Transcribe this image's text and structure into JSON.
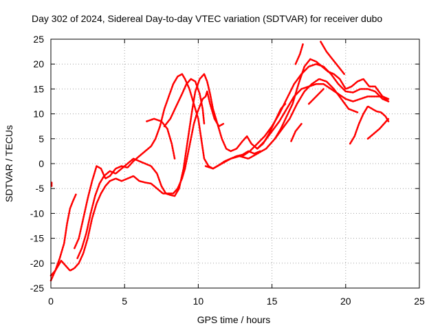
{
  "chart_data": {
    "type": "scatter",
    "title": "Day 302 of 2024, Sidereal Day-to-day VTEC variation (SDTVAR) for receiver dubo",
    "xlabel": "GPS time / hours",
    "ylabel": "SDTVAR / TECUs",
    "xlim": [
      0,
      25
    ],
    "ylim": [
      -25,
      25
    ],
    "xticks": [
      0,
      5,
      10,
      15,
      20,
      25
    ],
    "yticks": [
      -25,
      -20,
      -15,
      -10,
      -5,
      0,
      5,
      10,
      15,
      20,
      25
    ],
    "grid": true,
    "legend": "none",
    "marker_color": "#ff0000",
    "series": [
      {
        "points": [
          [
            0.0,
            -22.5
          ],
          [
            0.3,
            -21.5
          ],
          [
            0.7,
            -19.5
          ],
          [
            1.0,
            -20.5
          ],
          [
            1.3,
            -21.5
          ],
          [
            1.6,
            -21
          ],
          [
            1.9,
            -20
          ],
          [
            2.2,
            -18
          ],
          [
            2.5,
            -15
          ],
          [
            2.8,
            -11
          ],
          [
            3.1,
            -8
          ],
          [
            3.4,
            -6
          ],
          [
            3.7,
            -4.5
          ],
          [
            4.0,
            -3.5
          ],
          [
            4.4,
            -3
          ],
          [
            4.8,
            -3.5
          ],
          [
            5.2,
            -3
          ],
          [
            5.6,
            -2.5
          ],
          [
            6.0,
            -3.5
          ],
          [
            6.4,
            -3.8
          ],
          [
            6.8,
            -4
          ],
          [
            7.2,
            -5
          ],
          [
            7.6,
            -6
          ],
          [
            8.0,
            -6
          ],
          [
            8.3,
            -6
          ],
          [
            8.6,
            -5
          ],
          [
            8.9,
            -3
          ],
          [
            9.1,
            -1
          ],
          [
            9.3,
            2
          ],
          [
            9.5,
            5
          ],
          [
            9.7,
            8
          ],
          [
            9.9,
            10
          ],
          [
            10.1,
            11.5
          ],
          [
            10.3,
            13
          ],
          [
            10.5,
            13.5
          ],
          [
            10.6,
            14.5
          ],
          [
            10.8,
            12
          ],
          [
            11.1,
            9
          ],
          [
            11.4,
            7.5
          ],
          [
            11.7,
            8
          ]
        ]
      },
      {
        "points": [
          [
            0.0,
            -23.5
          ],
          [
            0.3,
            -21.5
          ],
          [
            0.6,
            -19
          ],
          [
            0.9,
            -16
          ],
          [
            1.1,
            -12
          ],
          [
            1.3,
            -9
          ],
          [
            1.5,
            -7.5
          ],
          [
            1.7,
            -6.2
          ]
        ]
      },
      {
        "points": [
          [
            0.05,
            -3.8
          ],
          [
            0.05,
            -4.5
          ]
        ]
      },
      {
        "points": [
          [
            1.6,
            -17
          ],
          [
            1.9,
            -15
          ],
          [
            2.2,
            -11
          ],
          [
            2.5,
            -7
          ],
          [
            2.8,
            -3.5
          ],
          [
            3.1,
            -0.5
          ],
          [
            3.4,
            -1
          ],
          [
            3.7,
            -3
          ],
          [
            4.0,
            -2.5
          ],
          [
            4.4,
            -1
          ],
          [
            4.8,
            -0.5
          ],
          [
            5.2,
            -0.8
          ],
          [
            5.6,
            0.5
          ],
          [
            6.0,
            1.5
          ],
          [
            6.4,
            2.5
          ],
          [
            6.8,
            3.5
          ],
          [
            7.1,
            5
          ],
          [
            7.4,
            7.5
          ],
          [
            7.7,
            11
          ],
          [
            8.0,
            13.5
          ],
          [
            8.3,
            16
          ],
          [
            8.6,
            17.5
          ],
          [
            8.9,
            18
          ],
          [
            9.1,
            17
          ],
          [
            9.4,
            15
          ],
          [
            9.6,
            13
          ],
          [
            9.8,
            11
          ],
          [
            10.0,
            9
          ],
          [
            10.2,
            5
          ],
          [
            10.4,
            1
          ],
          [
            10.7,
            -0.5
          ],
          [
            11.0,
            -1
          ],
          [
            11.4,
            -0.3
          ],
          [
            11.8,
            0.5
          ],
          [
            12.2,
            1
          ],
          [
            12.6,
            1.5
          ],
          [
            13.0,
            1.8
          ],
          [
            13.4,
            2.5
          ],
          [
            13.8,
            2
          ],
          [
            14.2,
            2.5
          ]
        ]
      },
      {
        "points": [
          [
            1.8,
            -19
          ],
          [
            2.1,
            -17
          ],
          [
            2.4,
            -14
          ],
          [
            2.7,
            -10
          ],
          [
            3.0,
            -6.5
          ],
          [
            3.3,
            -4
          ],
          [
            3.6,
            -2.5
          ],
          [
            4.0,
            -1.5
          ],
          [
            4.4,
            -2
          ],
          [
            4.8,
            -1
          ],
          [
            5.2,
            0
          ],
          [
            5.6,
            1
          ],
          [
            6.0,
            0.5
          ],
          [
            6.4,
            0
          ],
          [
            6.8,
            -0.5
          ],
          [
            7.2,
            -2
          ],
          [
            7.5,
            -4.5
          ],
          [
            7.8,
            -6
          ],
          [
            8.1,
            -6.3
          ],
          [
            8.4,
            -6.5
          ],
          [
            8.7,
            -5
          ],
          [
            9.0,
            -1
          ],
          [
            9.3,
            5
          ],
          [
            9.6,
            11
          ],
          [
            9.8,
            14.5
          ],
          [
            10.1,
            17
          ],
          [
            10.4,
            18
          ],
          [
            10.6,
            16.5
          ],
          [
            10.8,
            14
          ],
          [
            11.0,
            11
          ],
          [
            11.3,
            8
          ],
          [
            11.6,
            5
          ],
          [
            11.9,
            3
          ],
          [
            12.2,
            2.5
          ],
          [
            12.6,
            3
          ],
          [
            13.0,
            4.5
          ],
          [
            13.3,
            5.5
          ],
          [
            13.6,
            4
          ],
          [
            14.0,
            3
          ],
          [
            14.4,
            4
          ],
          [
            14.8,
            6
          ],
          [
            15.2,
            8.5
          ],
          [
            15.6,
            11
          ],
          [
            15.9,
            12
          ]
        ]
      },
      {
        "points": [
          [
            6.5,
            8.5
          ],
          [
            7.0,
            9
          ],
          [
            7.5,
            8.5
          ],
          [
            7.9,
            7
          ],
          [
            8.2,
            4
          ],
          [
            8.4,
            1
          ]
        ]
      },
      {
        "points": [
          [
            7.7,
            7.5
          ],
          [
            8.1,
            9
          ],
          [
            8.5,
            11.5
          ],
          [
            8.9,
            14
          ],
          [
            9.2,
            16
          ],
          [
            9.5,
            17
          ],
          [
            9.8,
            16.5
          ],
          [
            10.1,
            14
          ],
          [
            10.3,
            11
          ],
          [
            10.4,
            8
          ]
        ]
      },
      {
        "points": [
          [
            10.5,
            -0.5
          ],
          [
            11.0,
            -1
          ],
          [
            11.6,
            0
          ],
          [
            12.2,
            1
          ],
          [
            12.8,
            1.5
          ],
          [
            13.4,
            1
          ],
          [
            14.0,
            2
          ],
          [
            14.6,
            3
          ],
          [
            15.2,
            5
          ],
          [
            15.7,
            7
          ],
          [
            16.2,
            9
          ],
          [
            16.7,
            12
          ],
          [
            17.2,
            14.5
          ],
          [
            17.7,
            16
          ],
          [
            18.2,
            17
          ],
          [
            18.7,
            16.5
          ],
          [
            19.2,
            15
          ],
          [
            19.7,
            13
          ],
          [
            20.2,
            11
          ],
          [
            20.8,
            10.3
          ]
        ]
      },
      {
        "points": [
          [
            13.0,
            1.5
          ],
          [
            13.5,
            2.5
          ],
          [
            14.0,
            4
          ],
          [
            14.5,
            5.5
          ],
          [
            15.0,
            7.5
          ],
          [
            15.5,
            10
          ],
          [
            16.0,
            13
          ],
          [
            16.5,
            16
          ],
          [
            17.0,
            18
          ],
          [
            17.5,
            19.5
          ],
          [
            18.0,
            20
          ],
          [
            18.5,
            19.5
          ],
          [
            19.0,
            18
          ],
          [
            19.5,
            16
          ],
          [
            20.0,
            14.5
          ],
          [
            20.5,
            14.3
          ],
          [
            21.0,
            15
          ],
          [
            21.5,
            15
          ],
          [
            22.0,
            14.5
          ],
          [
            22.5,
            13
          ],
          [
            22.9,
            12.5
          ]
        ]
      },
      {
        "points": [
          [
            14.0,
            3
          ],
          [
            14.5,
            4.5
          ],
          [
            15.0,
            6.5
          ],
          [
            15.5,
            8.5
          ],
          [
            16.0,
            11
          ],
          [
            16.5,
            13.5
          ],
          [
            17.0,
            15
          ],
          [
            17.5,
            15.5
          ],
          [
            18.0,
            16
          ],
          [
            18.5,
            16
          ],
          [
            19.0,
            15
          ],
          [
            19.5,
            14
          ],
          [
            20.0,
            13
          ],
          [
            20.5,
            12.5
          ],
          [
            21.0,
            13
          ],
          [
            21.5,
            13.5
          ],
          [
            22.0,
            13.5
          ],
          [
            22.5,
            13.5
          ],
          [
            22.9,
            13
          ]
        ]
      },
      {
        "points": [
          [
            15.2,
            5
          ],
          [
            15.6,
            7
          ],
          [
            16.0,
            9.5
          ],
          [
            16.4,
            12
          ],
          [
            16.8,
            16
          ],
          [
            17.2,
            19.5
          ],
          [
            17.6,
            21
          ],
          [
            18.0,
            20.5
          ],
          [
            18.4,
            19.5
          ],
          [
            18.8,
            18.5
          ],
          [
            19.2,
            18
          ],
          [
            19.6,
            17
          ],
          [
            20.0,
            15
          ],
          [
            20.4,
            15.5
          ],
          [
            20.8,
            16.5
          ],
          [
            21.2,
            17
          ],
          [
            21.6,
            15.5
          ],
          [
            22.0,
            15.5
          ],
          [
            22.5,
            13.5
          ],
          [
            22.9,
            12.5
          ]
        ]
      },
      {
        "points": [
          [
            16.3,
            4.5
          ],
          [
            16.6,
            6.5
          ],
          [
            17.0,
            8
          ]
        ]
      },
      {
        "points": [
          [
            16.6,
            20
          ],
          [
            16.9,
            22
          ],
          [
            17.1,
            24
          ]
        ]
      },
      {
        "points": [
          [
            18.3,
            24.5
          ],
          [
            18.7,
            22.5
          ],
          [
            19.1,
            21
          ],
          [
            19.5,
            19.5
          ],
          [
            19.9,
            18
          ]
        ]
      },
      {
        "points": [
          [
            17.5,
            12
          ],
          [
            18.0,
            13.5
          ],
          [
            18.5,
            15
          ]
        ]
      },
      {
        "points": [
          [
            20.3,
            4
          ],
          [
            20.6,
            5.5
          ],
          [
            20.9,
            8
          ],
          [
            21.2,
            10
          ],
          [
            21.5,
            11.5
          ],
          [
            21.8,
            11
          ],
          [
            22.1,
            10.5
          ],
          [
            22.4,
            10.3
          ],
          [
            22.7,
            9.5
          ],
          [
            22.9,
            8.5
          ]
        ]
      },
      {
        "points": [
          [
            21.5,
            5
          ],
          [
            21.9,
            6
          ],
          [
            22.3,
            7
          ],
          [
            22.6,
            8
          ],
          [
            22.9,
            9
          ]
        ]
      }
    ]
  }
}
